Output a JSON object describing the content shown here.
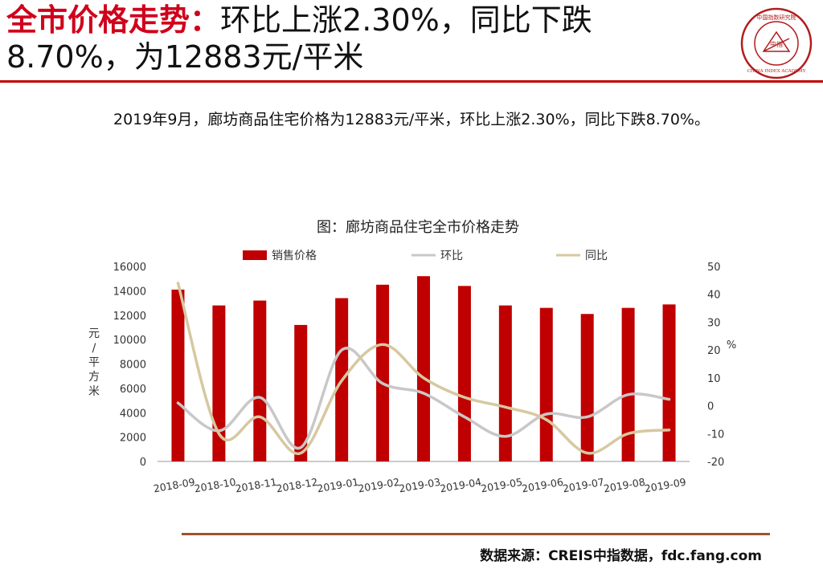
{
  "header": {
    "title_bold": "全市价格走势：",
    "title_line1_rest": "环比上涨2.30%，同比下跌",
    "title_line2": "8.70%，为12883元/平米"
  },
  "seal": {
    "text_top": "中国指数研究院",
    "text_bottom": "CHINA INDEX ACADEMY",
    "center": "中指"
  },
  "summary": "2019年9月，廊坊商品住宅价格为12883元/平米，环比上涨2.30%，同比下跌8.70%。",
  "source": "数据来源：CREIS中指数据，fdc.fang.com",
  "colors": {
    "bar": "#c00000",
    "mom": "#c8c8c8",
    "yoy": "#d6c8a0",
    "accent": "#d0021b"
  },
  "chart_data": {
    "type": "bar",
    "title": "图：廊坊商品住宅全市价格走势",
    "categories": [
      "2018-09",
      "2018-10",
      "2018-11",
      "2018-12",
      "2019-01",
      "2019-02",
      "2019-03",
      "2019-04",
      "2019-05",
      "2019-06",
      "2019-07",
      "2019-08",
      "2019-09"
    ],
    "series": [
      {
        "name": "销售价格",
        "type": "bar",
        "axis": "left",
        "values": [
          14100,
          12800,
          13200,
          11200,
          13400,
          14500,
          15200,
          14400,
          12800,
          12600,
          12100,
          12600,
          12883
        ]
      },
      {
        "name": "环比",
        "type": "line",
        "axis": "right",
        "values": [
          1.0,
          -9.0,
          3.0,
          -15.0,
          20.0,
          8.0,
          4.5,
          -4.0,
          -11.0,
          -3.0,
          -4.0,
          4.0,
          2.3
        ]
      },
      {
        "name": "同比",
        "type": "line",
        "axis": "right",
        "values": [
          44.0,
          -10.0,
          -4.0,
          -17.0,
          9.0,
          22.0,
          10.0,
          3.0,
          -0.5,
          -5.0,
          -17.0,
          -10.0,
          -8.7
        ]
      }
    ],
    "y_left": {
      "label": "元/平方米",
      "min": 0,
      "max": 16000,
      "ticks": [
        0,
        2000,
        4000,
        6000,
        8000,
        10000,
        12000,
        14000,
        16000
      ]
    },
    "y_right": {
      "label": "%",
      "min": -20,
      "max": 50,
      "ticks": [
        -20,
        -10,
        0,
        10,
        20,
        30,
        40,
        50
      ]
    },
    "grid": false,
    "legend_position": "top"
  }
}
